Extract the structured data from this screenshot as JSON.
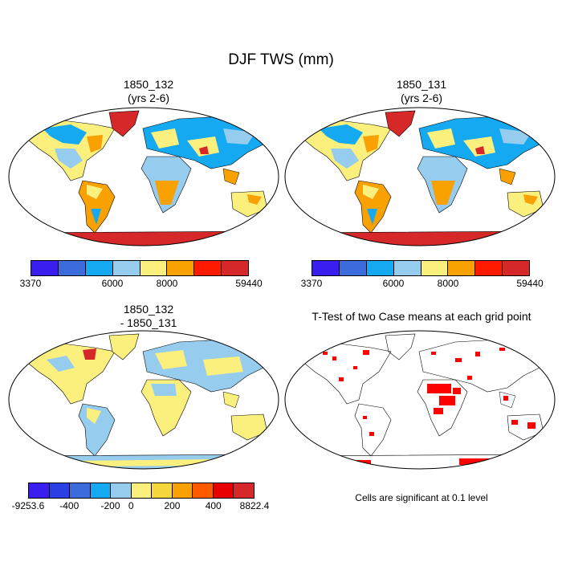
{
  "title": "DJF TWS (mm)",
  "panels": [
    {
      "id": "p1",
      "title_line1": "1850_132",
      "title_line2": "(yrs 2-6)"
    },
    {
      "id": "p2",
      "title_line1": "1850_131",
      "title_line2": "(yrs 2-6)"
    },
    {
      "id": "p3",
      "title_line1": "1850_132",
      "title_line2": "- 1850_131"
    },
    {
      "id": "p4",
      "title_line1": "T-Test of two Case means at each grid point",
      "title_line2": ""
    }
  ],
  "colorbar_abs": {
    "colors": [
      "#3a1ef0",
      "#3c6cdc",
      "#14a9f0",
      "#96cced",
      "#fbf07e",
      "#f9a100",
      "#ff1a00",
      "#d62828"
    ],
    "labels": [
      "3370",
      "6000",
      "8000",
      "59440"
    ]
  },
  "colorbar_diff": {
    "colors": [
      "#3a1ef0",
      "#2a40e4",
      "#3c6cdc",
      "#14a9f0",
      "#96cced",
      "#fbf07e",
      "#f6d83c",
      "#f9a100",
      "#ff5a00",
      "#e80000",
      "#d62828"
    ],
    "labels": [
      "-9253.6",
      "-400",
      "-200",
      "0",
      "200",
      "400",
      "8822.4"
    ]
  },
  "ttest_note": "Cells are significant at 0.1 level"
}
